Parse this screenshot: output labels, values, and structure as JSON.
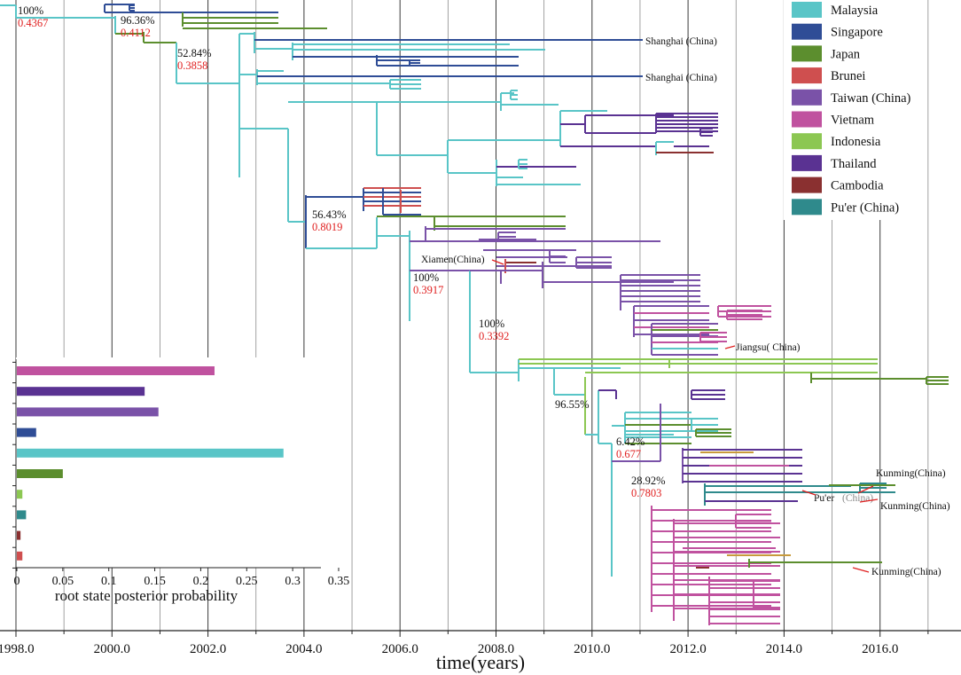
{
  "chart_data": {
    "type": "phylogenetic-tree",
    "xlabel": "time(years)",
    "x_range": [
      1997.7,
      2017.8
    ],
    "x_ticks": [
      "1998.0",
      "2000.0",
      "2002.0",
      "2004.0",
      "2006.0",
      "2008.0",
      "2010.0",
      "2012.0",
      "2014.0",
      "2016.0"
    ],
    "legend": [
      {
        "name": "Malaysia",
        "color": "#59c5c7"
      },
      {
        "name": "Singapore",
        "color": "#2f4d96"
      },
      {
        "name": "Japan",
        "color": "#5c8e2e"
      },
      {
        "name": "Brunei",
        "color": "#cf4f4f"
      },
      {
        "name": "Taiwan  (China)",
        "color": "#7a52a8"
      },
      {
        "name": "Vietnam",
        "color": "#c0529f"
      },
      {
        "name": "Indonesia",
        "color": "#8cc752"
      },
      {
        "name": "Thailand",
        "color": "#5a3292"
      },
      {
        "name": "Cambodia",
        "color": "#8a3030"
      },
      {
        "name": "Pu'er (China)",
        "color": "#2f8a8c"
      }
    ],
    "node_annotations": [
      {
        "support": "100%",
        "probability": "0.4367"
      },
      {
        "support": "96.36%",
        "probability": "0.4112"
      },
      {
        "support": "52.84%",
        "probability": "0.3858"
      },
      {
        "support": "56.43%",
        "probability": "0.8019"
      },
      {
        "support": "100%",
        "probability": "0.3917"
      },
      {
        "support": "100%",
        "probability": "0.3392"
      },
      {
        "support": "96.55%",
        "probability": ""
      },
      {
        "support": "6.42%",
        "probability": "0.677"
      },
      {
        "support": "28.92%",
        "probability": "0.7803"
      }
    ],
    "tip_labels": [
      "Shanghai (China)",
      "Shanghai (China)",
      "Xiamen(China)",
      "Jiangsu( China)",
      "Kunming(China)",
      "Pu'er",
      "(China)",
      "Kunming(China)",
      "Kunming(China)"
    ],
    "inset_bar": {
      "type": "bar",
      "orientation": "horizontal",
      "xlabel": "root state posterior probability",
      "xlim": [
        0,
        0.35
      ],
      "x_ticks": [
        "0",
        "0.05",
        "0.1",
        "0.15",
        "0.2",
        "0.25",
        "0.3",
        "0.35"
      ],
      "bars": [
        {
          "category": "Vietnam",
          "value": 0.215,
          "color": "#c0529f"
        },
        {
          "category": "Thailand",
          "value": 0.139,
          "color": "#5a3292"
        },
        {
          "category": "Taiwan  (China)",
          "value": 0.154,
          "color": "#7a52a8"
        },
        {
          "category": "Singapore",
          "value": 0.021,
          "color": "#2f4d96"
        },
        {
          "category": "Malaysia",
          "value": 0.29,
          "color": "#59c5c7"
        },
        {
          "category": "Japan",
          "value": 0.05,
          "color": "#5c8e2e"
        },
        {
          "category": "Indonesia",
          "value": 0.006,
          "color": "#8cc752"
        },
        {
          "category": "Pu'er (China)",
          "value": 0.01,
          "color": "#2f8a8c"
        },
        {
          "category": "Cambodia",
          "value": 0.004,
          "color": "#8a3030"
        },
        {
          "category": "Brunei",
          "value": 0.006,
          "color": "#cf4f4f"
        }
      ]
    }
  }
}
